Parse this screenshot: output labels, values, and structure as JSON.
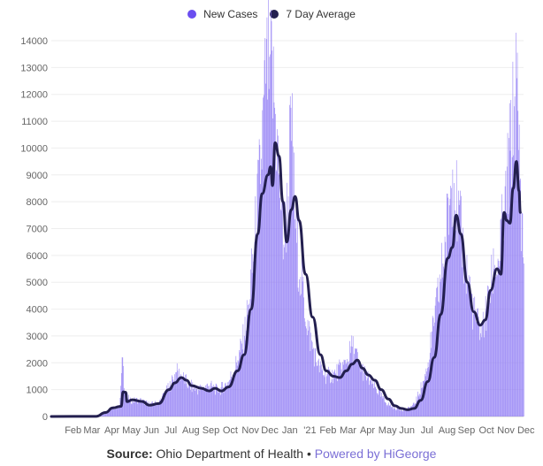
{
  "legend": {
    "new_cases": "New Cases",
    "avg": "7 Day Average"
  },
  "colors": {
    "bars": "#8f7bf5",
    "line": "#231f4f",
    "legend_new_cases": "#6b4ef0",
    "legend_avg": "#231f4f",
    "grid": "#eeeeee",
    "powered": "#7b6fd6"
  },
  "source": {
    "label": "Source:",
    "text": "Ohio Department of Health",
    "separator": "•",
    "powered": "Powered by HiGeorge"
  },
  "chart_data": {
    "type": "bar",
    "title": "",
    "xlabel": "",
    "ylabel": "",
    "ylim": [
      0,
      14000
    ],
    "yticks": [
      0,
      1000,
      2000,
      3000,
      4000,
      5000,
      6000,
      7000,
      8000,
      9000,
      10000,
      11000,
      12000,
      13000,
      14000
    ],
    "x_ticks": [
      "Feb",
      "Mar",
      "Apr",
      "May",
      "Jun",
      "Jul",
      "Aug",
      "Sep",
      "Oct",
      "Nov",
      "Dec",
      "Jan",
      "'21",
      "Feb",
      "Mar",
      "Apr",
      "May",
      "Jun",
      "Jul",
      "Aug",
      "Sep",
      "Oct",
      "Nov",
      "Dec"
    ],
    "x_start": "2020-01-01",
    "x_end": "2021-12-31",
    "series": [
      {
        "name": "New Cases",
        "type": "bar",
        "points": [
          [
            "2020-01-01",
            0
          ],
          [
            "2020-03-01",
            10
          ],
          [
            "2020-03-15",
            60
          ],
          [
            "2020-04-01",
            280
          ],
          [
            "2020-04-15",
            380
          ],
          [
            "2020-04-20",
            2200
          ],
          [
            "2020-04-23",
            900
          ],
          [
            "2020-05-01",
            580
          ],
          [
            "2020-05-15",
            620
          ],
          [
            "2020-06-01",
            450
          ],
          [
            "2020-06-15",
            520
          ],
          [
            "2020-07-01",
            1100
          ],
          [
            "2020-07-12",
            1650
          ],
          [
            "2020-07-20",
            1500
          ],
          [
            "2020-08-01",
            1150
          ],
          [
            "2020-08-15",
            1000
          ],
          [
            "2020-09-01",
            1150
          ],
          [
            "2020-09-15",
            950
          ],
          [
            "2020-10-01",
            1300
          ],
          [
            "2020-10-15",
            2100
          ],
          [
            "2020-10-25",
            3000
          ],
          [
            "2020-11-01",
            4200
          ],
          [
            "2020-11-10",
            6500
          ],
          [
            "2020-11-20",
            9600
          ],
          [
            "2020-11-27",
            12400
          ],
          [
            "2020-12-03",
            13400
          ],
          [
            "2020-12-10",
            11700
          ],
          [
            "2020-12-18",
            9000
          ],
          [
            "2020-12-25",
            6400
          ],
          [
            "2021-01-01",
            8200
          ],
          [
            "2021-01-05",
            11500
          ],
          [
            "2021-01-12",
            7000
          ],
          [
            "2021-01-20",
            5200
          ],
          [
            "2021-02-01",
            3200
          ],
          [
            "2021-02-15",
            1900
          ],
          [
            "2021-03-01",
            1500
          ],
          [
            "2021-03-15",
            1600
          ],
          [
            "2021-04-01",
            2000
          ],
          [
            "2021-04-10",
            2600
          ],
          [
            "2021-04-20",
            2000
          ],
          [
            "2021-05-01",
            1500
          ],
          [
            "2021-05-15",
            1100
          ],
          [
            "2021-06-01",
            500
          ],
          [
            "2021-06-15",
            300
          ],
          [
            "2021-07-01",
            230
          ],
          [
            "2021-07-15",
            450
          ],
          [
            "2021-08-01",
            1500
          ],
          [
            "2021-08-15",
            3500
          ],
          [
            "2021-09-01",
            6500
          ],
          [
            "2021-09-12",
            9200
          ],
          [
            "2021-09-20",
            7500
          ],
          [
            "2021-10-01",
            5800
          ],
          [
            "2021-10-15",
            3800
          ],
          [
            "2021-10-25",
            3100
          ],
          [
            "2021-11-01",
            3600
          ],
          [
            "2021-11-15",
            5500
          ],
          [
            "2021-11-22",
            5800
          ],
          [
            "2021-12-01",
            7600
          ],
          [
            "2021-12-10",
            9900
          ],
          [
            "2021-12-20",
            12600
          ],
          [
            "2021-12-25",
            8800
          ],
          [
            "2021-12-31",
            5700
          ]
        ]
      },
      {
        "name": "7 Day Average",
        "type": "line",
        "points": [
          [
            "2020-01-01",
            0
          ],
          [
            "2020-03-10",
            5
          ],
          [
            "2020-03-25",
            150
          ],
          [
            "2020-04-05",
            320
          ],
          [
            "2020-04-18",
            380
          ],
          [
            "2020-04-21",
            920
          ],
          [
            "2020-04-25",
            900
          ],
          [
            "2020-04-27",
            550
          ],
          [
            "2020-05-05",
            620
          ],
          [
            "2020-05-20",
            560
          ],
          [
            "2020-06-01",
            420
          ],
          [
            "2020-06-15",
            480
          ],
          [
            "2020-07-01",
            1000
          ],
          [
            "2020-07-10",
            1250
          ],
          [
            "2020-07-20",
            1450
          ],
          [
            "2020-07-28",
            1350
          ],
          [
            "2020-08-05",
            1150
          ],
          [
            "2020-08-20",
            1050
          ],
          [
            "2020-09-01",
            950
          ],
          [
            "2020-09-10",
            1050
          ],
          [
            "2020-09-20",
            950
          ],
          [
            "2020-10-01",
            1100
          ],
          [
            "2020-10-15",
            1700
          ],
          [
            "2020-10-25",
            2300
          ],
          [
            "2020-11-05",
            4000
          ],
          [
            "2020-11-15",
            6800
          ],
          [
            "2020-11-22",
            8300
          ],
          [
            "2020-12-01",
            9000
          ],
          [
            "2020-12-05",
            9300
          ],
          [
            "2020-12-08",
            8600
          ],
          [
            "2020-12-12",
            10200
          ],
          [
            "2020-12-18",
            9700
          ],
          [
            "2020-12-24",
            8000
          ],
          [
            "2020-12-30",
            6500
          ],
          [
            "2021-01-06",
            7700
          ],
          [
            "2021-01-12",
            8200
          ],
          [
            "2021-01-18",
            7300
          ],
          [
            "2021-01-28",
            5300
          ],
          [
            "2021-02-08",
            3700
          ],
          [
            "2021-02-20",
            2300
          ],
          [
            "2021-03-01",
            1700
          ],
          [
            "2021-03-12",
            1500
          ],
          [
            "2021-03-22",
            1450
          ],
          [
            "2021-04-01",
            1700
          ],
          [
            "2021-04-10",
            1950
          ],
          [
            "2021-04-18",
            2100
          ],
          [
            "2021-04-26",
            1800
          ],
          [
            "2021-05-05",
            1550
          ],
          [
            "2021-05-15",
            1350
          ],
          [
            "2021-05-25",
            1000
          ],
          [
            "2021-06-05",
            650
          ],
          [
            "2021-06-15",
            400
          ],
          [
            "2021-06-25",
            300
          ],
          [
            "2021-07-05",
            250
          ],
          [
            "2021-07-15",
            300
          ],
          [
            "2021-07-25",
            600
          ],
          [
            "2021-08-05",
            1300
          ],
          [
            "2021-08-15",
            2200
          ],
          [
            "2021-08-25",
            3800
          ],
          [
            "2021-09-05",
            5900
          ],
          [
            "2021-09-12",
            6300
          ],
          [
            "2021-09-18",
            7500
          ],
          [
            "2021-09-25",
            6800
          ],
          [
            "2021-10-05",
            5000
          ],
          [
            "2021-10-15",
            3900
          ],
          [
            "2021-10-25",
            3400
          ],
          [
            "2021-11-02",
            3600
          ],
          [
            "2021-11-10",
            4700
          ],
          [
            "2021-11-20",
            5500
          ],
          [
            "2021-11-26",
            5300
          ],
          [
            "2021-12-01",
            7600
          ],
          [
            "2021-12-05",
            7300
          ],
          [
            "2021-12-10",
            7200
          ],
          [
            "2021-12-15",
            8500
          ],
          [
            "2021-12-20",
            9500
          ],
          [
            "2021-12-24",
            8400
          ],
          [
            "2021-12-26",
            7600
          ]
        ]
      }
    ],
    "legend_position": "top-center",
    "grid": true
  }
}
